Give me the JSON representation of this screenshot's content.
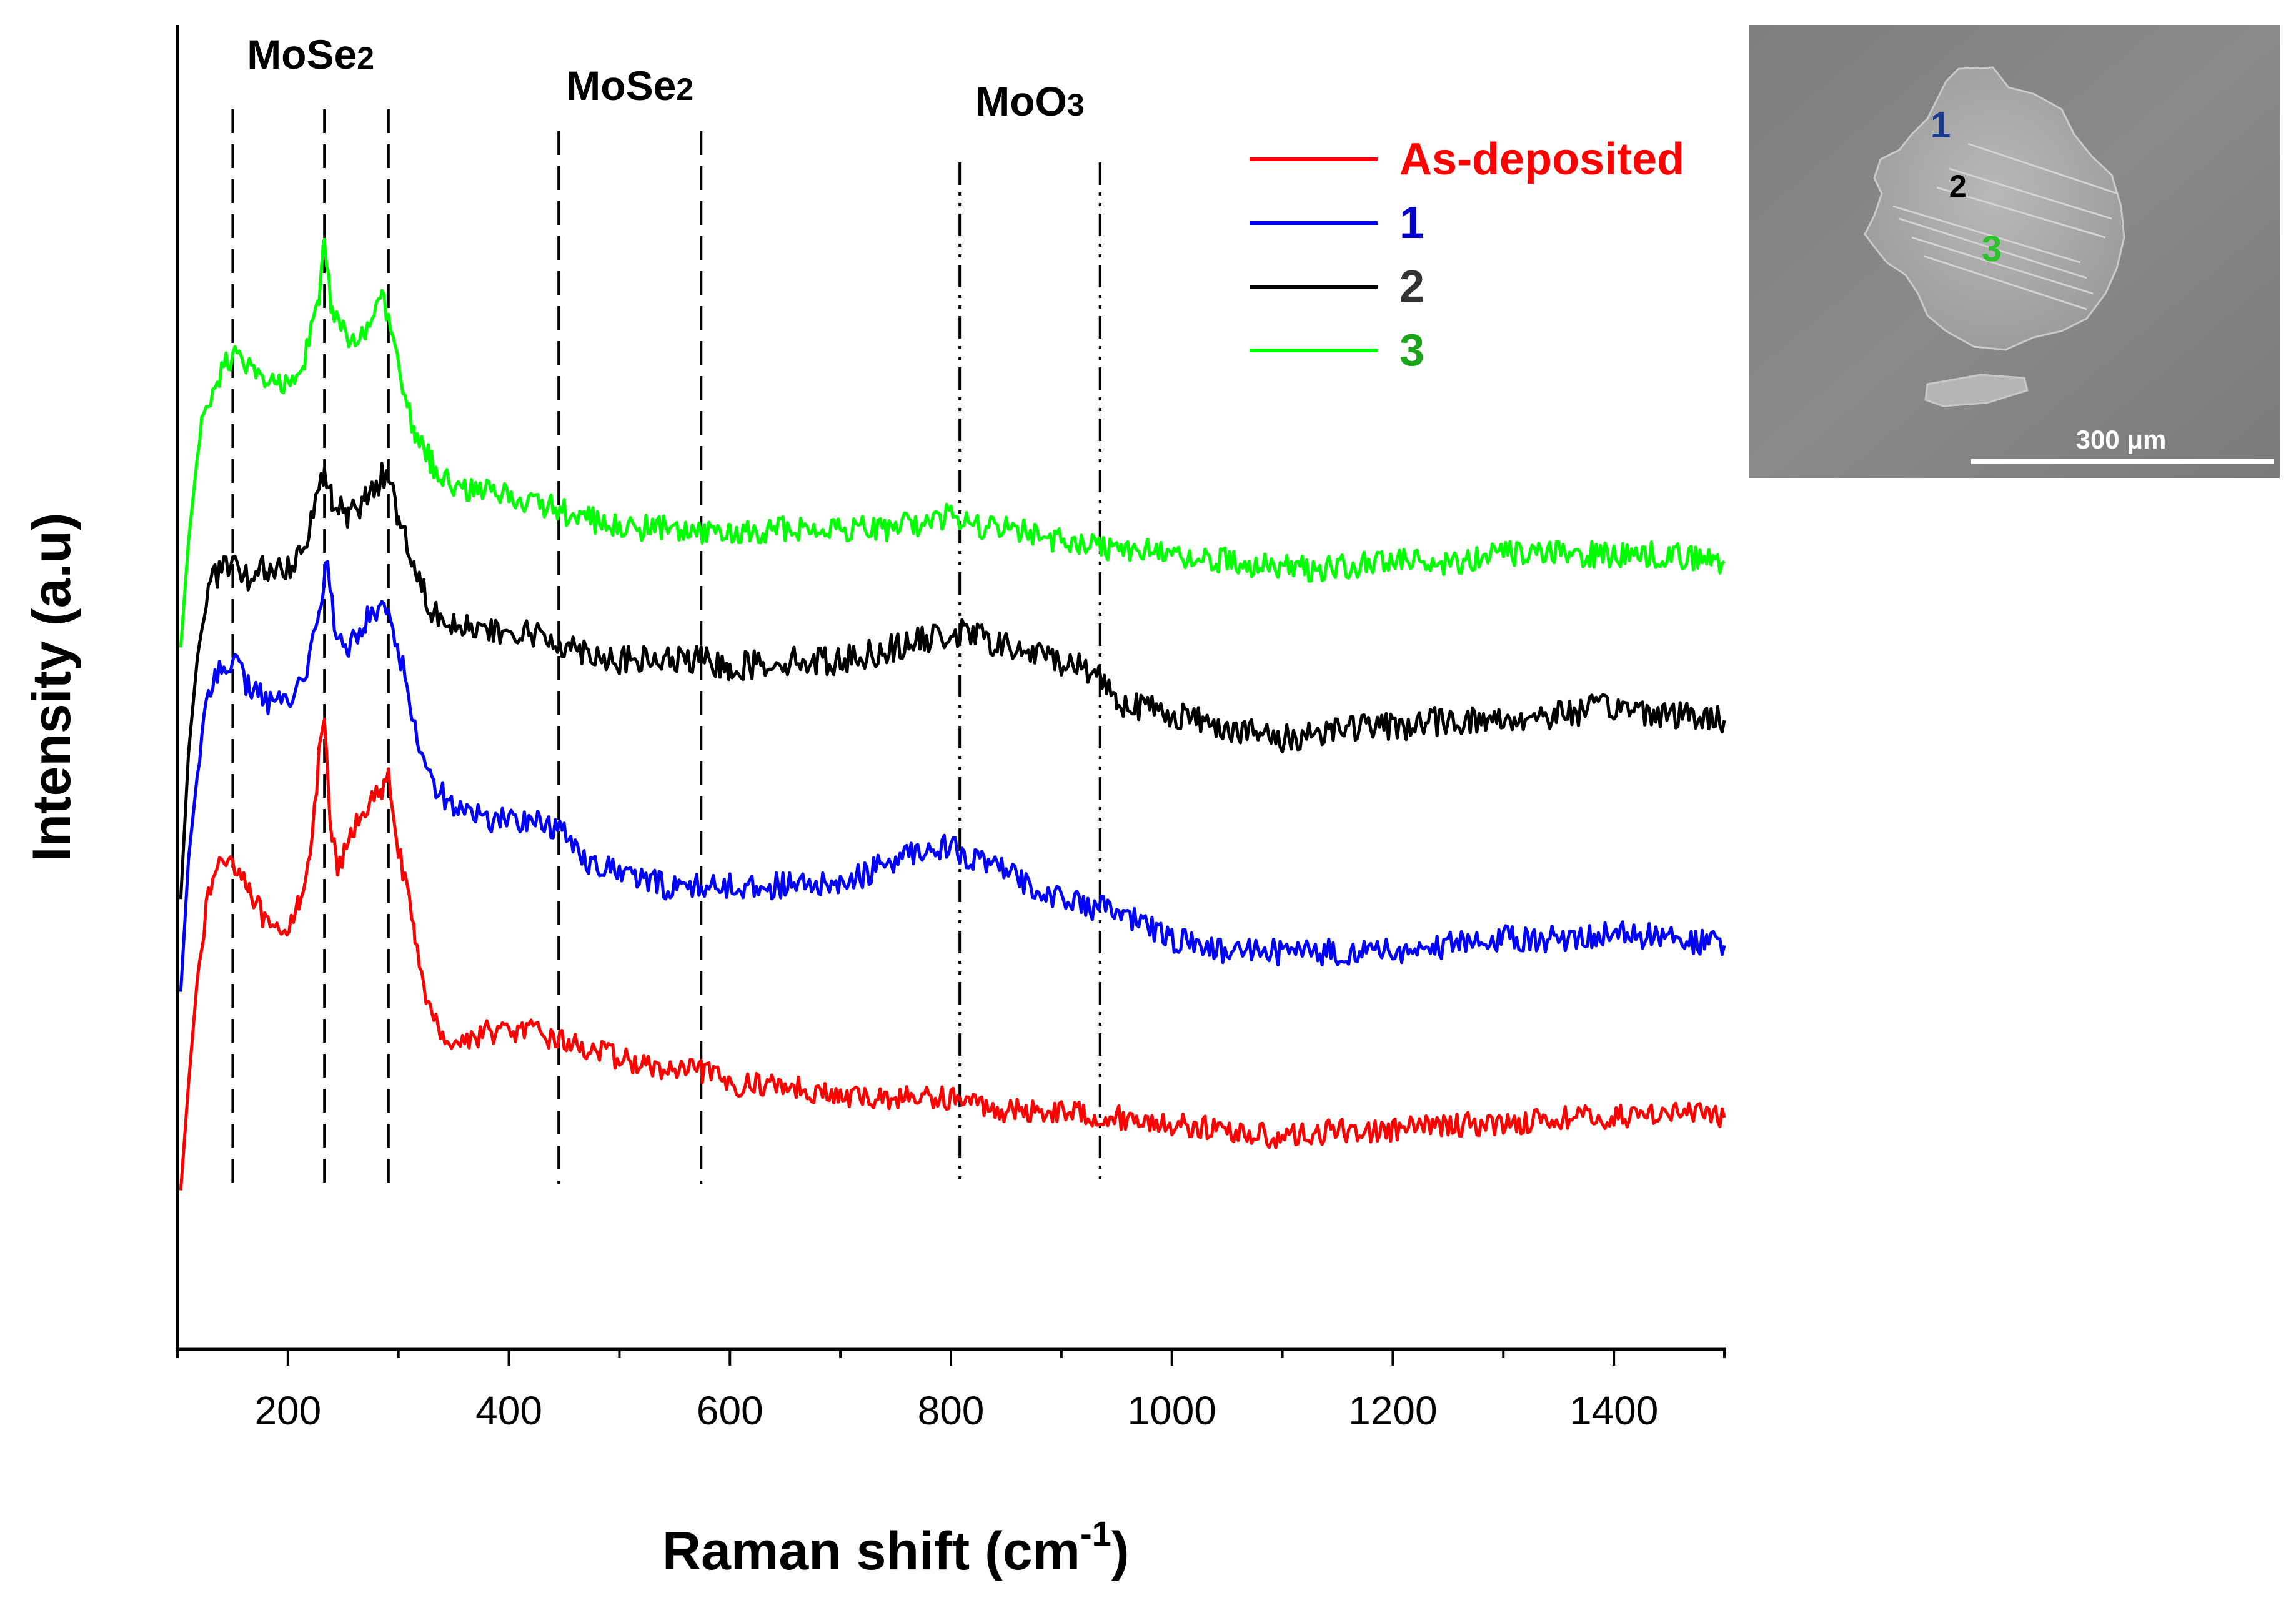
{
  "chart_data": {
    "type": "line",
    "title": "",
    "xlabel": "Raman shift (cm",
    "xlabel_sup": "-1",
    "xlabel_close": ")",
    "ylabel": "Intensity (a.u)",
    "xlim": [
      100,
      1500
    ],
    "ylim": [
      0,
      100
    ],
    "xticks": [
      200,
      400,
      600,
      800,
      1000,
      1200,
      1400
    ],
    "xtick_labels": [
      "200",
      "400",
      "600",
      "800",
      "1000",
      "1200",
      "1400"
    ],
    "minor_xticks": [
      100,
      300,
      500,
      700,
      900,
      1100,
      1300,
      1500
    ],
    "y_ticks_shown": false,
    "grid": false,
    "legend_placement": "top-right",
    "peak_groups": [
      {
        "label": "MoSe",
        "sub": "2",
        "positions": [
          150,
          233,
          291
        ],
        "style": "dashed"
      },
      {
        "label": "MoSe",
        "sub": "2",
        "positions": [
          445,
          574
        ],
        "style": "dashed"
      },
      {
        "label": "MoO",
        "sub": "3",
        "positions": [
          808,
          935
        ],
        "style": "dash-dot-dot"
      }
    ],
    "series": [
      {
        "name": "As-deposited",
        "color": "#ff0000",
        "label_color": "#ff0000",
        "points": [
          [
            103,
            12
          ],
          [
            110,
            20
          ],
          [
            120,
            30
          ],
          [
            130,
            35
          ],
          [
            140,
            37
          ],
          [
            150,
            37
          ],
          [
            165,
            35
          ],
          [
            180,
            32
          ],
          [
            195,
            31
          ],
          [
            210,
            34
          ],
          [
            222,
            38
          ],
          [
            228,
            45
          ],
          [
            233,
            47
          ],
          [
            238,
            40
          ],
          [
            245,
            36
          ],
          [
            258,
            39
          ],
          [
            270,
            41
          ],
          [
            285,
            42
          ],
          [
            291,
            43
          ],
          [
            300,
            38
          ],
          [
            315,
            31
          ],
          [
            330,
            25
          ],
          [
            350,
            23
          ],
          [
            380,
            24
          ],
          [
            420,
            24
          ],
          [
            460,
            23
          ],
          [
            500,
            22
          ],
          [
            540,
            21
          ],
          [
            575,
            21
          ],
          [
            600,
            20
          ],
          [
            650,
            20
          ],
          [
            700,
            19
          ],
          [
            750,
            19
          ],
          [
            800,
            19
          ],
          [
            850,
            18
          ],
          [
            900,
            18
          ],
          [
            950,
            17.5
          ],
          [
            1000,
            17
          ],
          [
            1050,
            16.5
          ],
          [
            1100,
            16
          ],
          [
            1150,
            16.5
          ],
          [
            1200,
            16.5
          ],
          [
            1250,
            17
          ],
          [
            1300,
            17
          ],
          [
            1350,
            17.5
          ],
          [
            1400,
            17.5
          ],
          [
            1450,
            18
          ],
          [
            1500,
            17.5
          ]
        ],
        "noise": 0.9
      },
      {
        "name": "1",
        "color": "#0000ff",
        "label_color": "#0000c8",
        "points": [
          [
            103,
            27
          ],
          [
            110,
            37
          ],
          [
            120,
            45
          ],
          [
            130,
            50
          ],
          [
            140,
            52
          ],
          [
            150,
            52
          ],
          [
            165,
            50
          ],
          [
            180,
            49
          ],
          [
            200,
            49
          ],
          [
            215,
            51
          ],
          [
            228,
            55
          ],
          [
            236,
            60
          ],
          [
            242,
            54
          ],
          [
            255,
            53
          ],
          [
            270,
            55
          ],
          [
            285,
            56
          ],
          [
            291,
            56
          ],
          [
            300,
            53
          ],
          [
            315,
            47
          ],
          [
            330,
            43
          ],
          [
            350,
            41
          ],
          [
            380,
            40
          ],
          [
            420,
            40
          ],
          [
            450,
            39
          ],
          [
            470,
            37
          ],
          [
            500,
            36
          ],
          [
            540,
            35
          ],
          [
            575,
            35
          ],
          [
            600,
            35
          ],
          [
            650,
            35
          ],
          [
            700,
            35
          ],
          [
            750,
            37
          ],
          [
            780,
            38
          ],
          [
            800,
            38
          ],
          [
            820,
            37
          ],
          [
            850,
            36
          ],
          [
            900,
            34
          ],
          [
            950,
            33
          ],
          [
            1000,
            31
          ],
          [
            1050,
            30
          ],
          [
            1100,
            30
          ],
          [
            1150,
            30
          ],
          [
            1200,
            30
          ],
          [
            1250,
            30.5
          ],
          [
            1300,
            31
          ],
          [
            1350,
            31
          ],
          [
            1400,
            31.5
          ],
          [
            1450,
            31
          ],
          [
            1500,
            30.5
          ]
        ],
        "noise": 1.0
      },
      {
        "name": "2",
        "color": "#000000",
        "label_color": "#333333",
        "points": [
          [
            103,
            34
          ],
          [
            110,
            45
          ],
          [
            120,
            54
          ],
          [
            130,
            58
          ],
          [
            140,
            59
          ],
          [
            150,
            59
          ],
          [
            165,
            58
          ],
          [
            180,
            59
          ],
          [
            200,
            59
          ],
          [
            215,
            61
          ],
          [
            228,
            65
          ],
          [
            233,
            66
          ],
          [
            240,
            64
          ],
          [
            255,
            63
          ],
          [
            270,
            64
          ],
          [
            285,
            66
          ],
          [
            291,
            66
          ],
          [
            300,
            63
          ],
          [
            315,
            59
          ],
          [
            330,
            56
          ],
          [
            350,
            55
          ],
          [
            380,
            54
          ],
          [
            420,
            54
          ],
          [
            460,
            53
          ],
          [
            500,
            52
          ],
          [
            540,
            52
          ],
          [
            575,
            52
          ],
          [
            600,
            51.5
          ],
          [
            650,
            52
          ],
          [
            700,
            52
          ],
          [
            750,
            53
          ],
          [
            800,
            54
          ],
          [
            820,
            54
          ],
          [
            850,
            53
          ],
          [
            900,
            52
          ],
          [
            935,
            51
          ],
          [
            950,
            49
          ],
          [
            1000,
            48
          ],
          [
            1050,
            47
          ],
          [
            1100,
            46
          ],
          [
            1150,
            47
          ],
          [
            1200,
            47
          ],
          [
            1250,
            47.5
          ],
          [
            1300,
            47.5
          ],
          [
            1350,
            48
          ],
          [
            1400,
            48.5
          ],
          [
            1450,
            48
          ],
          [
            1500,
            47.5
          ]
        ],
        "noise": 1.1
      },
      {
        "name": "3",
        "color": "#00ff00",
        "label_color": "#1aa51a",
        "points": [
          [
            103,
            53
          ],
          [
            110,
            61
          ],
          [
            120,
            69
          ],
          [
            130,
            72
          ],
          [
            140,
            74
          ],
          [
            150,
            75
          ],
          [
            165,
            74
          ],
          [
            180,
            73
          ],
          [
            200,
            73
          ],
          [
            215,
            75
          ],
          [
            228,
            79
          ],
          [
            233,
            84
          ],
          [
            240,
            78
          ],
          [
            255,
            76
          ],
          [
            270,
            77
          ],
          [
            285,
            79
          ],
          [
            291,
            78
          ],
          [
            300,
            74
          ],
          [
            315,
            69
          ],
          [
            330,
            67
          ],
          [
            350,
            65
          ],
          [
            380,
            65
          ],
          [
            420,
            64
          ],
          [
            460,
            63
          ],
          [
            500,
            62
          ],
          [
            540,
            62
          ],
          [
            575,
            61.5
          ],
          [
            600,
            61.5
          ],
          [
            650,
            62
          ],
          [
            700,
            62
          ],
          [
            750,
            62
          ],
          [
            800,
            63
          ],
          [
            820,
            62
          ],
          [
            850,
            62
          ],
          [
            900,
            61
          ],
          [
            950,
            60.5
          ],
          [
            1000,
            60
          ],
          [
            1050,
            59.5
          ],
          [
            1100,
            59
          ],
          [
            1150,
            59
          ],
          [
            1200,
            59.5
          ],
          [
            1250,
            59.5
          ],
          [
            1300,
            60
          ],
          [
            1350,
            60
          ],
          [
            1400,
            60
          ],
          [
            1450,
            60
          ],
          [
            1500,
            59.5
          ]
        ],
        "noise": 1.0
      }
    ]
  },
  "inset": {
    "markers": [
      {
        "label": "1",
        "color": "#1a3a8a"
      },
      {
        "label": "2",
        "color": "#000000"
      },
      {
        "label": "3",
        "color": "#2bc22b"
      }
    ],
    "scale_bar_label": "300 μm"
  }
}
